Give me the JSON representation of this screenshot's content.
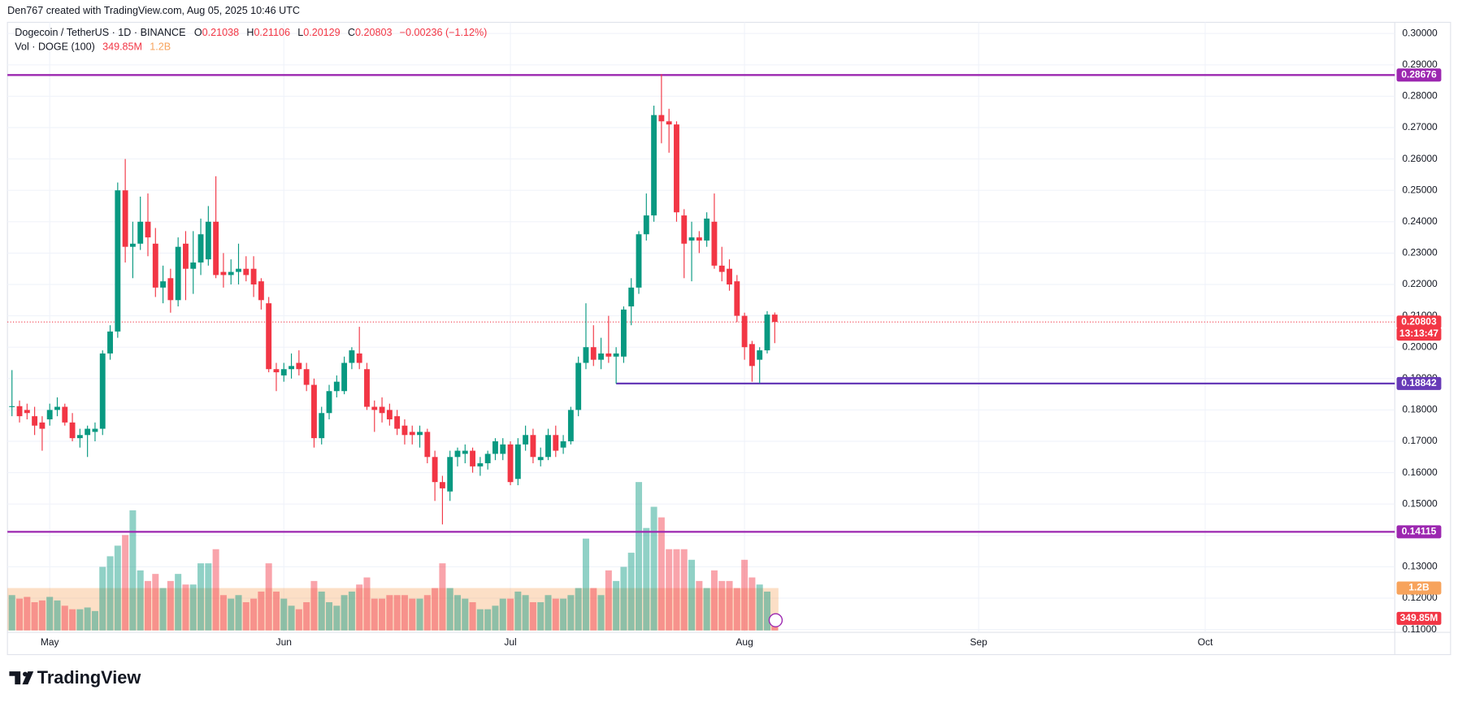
{
  "header": {
    "credit": "Den767 created with TradingView.com, Aug 05, 2025 10:46 UTC"
  },
  "chart_data": {
    "type": "candlestick",
    "symbol": "Dogecoin / TetherUS · 1D · BINANCE",
    "ohlc_labels": [
      "O",
      "H",
      "L",
      "C"
    ],
    "change": "−0.00236 (−1.12%)",
    "volume_title": "Vol · DOGE (100)",
    "volume_last": {
      "value": 349850000,
      "label": "349.85M"
    },
    "volume_ma": {
      "value": 1200000000,
      "label": "1.2B"
    },
    "countdown": "13:13:47",
    "up_color": "#089981",
    "down_color": "#f23645",
    "ma_color": "#f7a35c",
    "grid": true,
    "ylim": [
      0.11,
      0.3
    ],
    "yticks": [
      {
        "value": 0.3,
        "label": "0.30000"
      },
      {
        "value": 0.29,
        "label": "0.29000"
      },
      {
        "value": 0.28,
        "label": "0.28000"
      },
      {
        "value": 0.27,
        "label": "0.27000"
      },
      {
        "value": 0.26,
        "label": "0.26000"
      },
      {
        "value": 0.25,
        "label": "0.25000"
      },
      {
        "value": 0.24,
        "label": "0.24000"
      },
      {
        "value": 0.23,
        "label": "0.23000"
      },
      {
        "value": 0.22,
        "label": "0.22000"
      },
      {
        "value": 0.21,
        "label": "0.21000"
      },
      {
        "value": 0.2,
        "label": "0.20000"
      },
      {
        "value": 0.19,
        "label": "0.19000"
      },
      {
        "value": 0.18,
        "label": "0.18000"
      },
      {
        "value": 0.17,
        "label": "0.17000"
      },
      {
        "value": 0.16,
        "label": "0.16000"
      },
      {
        "value": 0.15,
        "label": "0.15000"
      },
      {
        "value": 0.14,
        "label": "0.14000"
      },
      {
        "value": 0.13,
        "label": "0.13000"
      },
      {
        "value": 0.12,
        "label": "0.12000"
      },
      {
        "value": 0.11,
        "label": "0.11000"
      }
    ],
    "xlim": [
      -0.6,
      183.1
    ],
    "xticks": [
      {
        "value": 5,
        "label": "May"
      },
      {
        "value": 36,
        "label": "Jun"
      },
      {
        "value": 66,
        "label": "Jul"
      },
      {
        "value": 97,
        "label": "Aug"
      },
      {
        "value": 128,
        "label": "Sep"
      },
      {
        "value": 158,
        "label": "Oct"
      }
    ],
    "levels": [
      {
        "value": 0.28676,
        "color": "#9c27b0"
      },
      {
        "value": 0.18842,
        "color": "#673ab7",
        "start": 80
      },
      {
        "value": 0.14115,
        "color": "#9c27b0"
      }
    ],
    "candles": [
      [
        0.181,
        0.1927,
        0.178,
        0.1812
      ],
      [
        0.1812,
        0.183,
        0.176,
        0.178
      ],
      [
        0.18,
        0.182,
        0.177,
        0.179
      ],
      [
        0.178,
        0.181,
        0.172,
        0.175
      ],
      [
        0.176,
        0.178,
        0.167,
        0.174
      ],
      [
        0.177,
        0.182,
        0.175,
        0.18
      ],
      [
        0.18,
        0.184,
        0.178,
        0.181
      ],
      [
        0.181,
        0.182,
        0.175,
        0.176
      ],
      [
        0.176,
        0.179,
        0.17,
        0.171
      ],
      [
        0.171,
        0.174,
        0.168,
        0.172
      ],
      [
        0.172,
        0.175,
        0.165,
        0.174
      ],
      [
        0.173,
        0.176,
        0.17,
        0.174
      ],
      [
        0.174,
        0.199,
        0.172,
        0.198
      ],
      [
        0.198,
        0.207,
        0.196,
        0.205
      ],
      [
        0.205,
        0.2525,
        0.203,
        0.25
      ],
      [
        0.25,
        0.26,
        0.227,
        0.232
      ],
      [
        0.232,
        0.24,
        0.222,
        0.233
      ],
      [
        0.233,
        0.248,
        0.231,
        0.24
      ],
      [
        0.24,
        0.249,
        0.229,
        0.235
      ],
      [
        0.233,
        0.238,
        0.216,
        0.219
      ],
      [
        0.219,
        0.226,
        0.214,
        0.221
      ],
      [
        0.222,
        0.225,
        0.211,
        0.215
      ],
      [
        0.215,
        0.235,
        0.213,
        0.232
      ],
      [
        0.233,
        0.237,
        0.215,
        0.225
      ],
      [
        0.225,
        0.237,
        0.217,
        0.227
      ],
      [
        0.227,
        0.241,
        0.223,
        0.236
      ],
      [
        0.228,
        0.245,
        0.226,
        0.24
      ],
      [
        0.24,
        0.2545,
        0.222,
        0.223
      ],
      [
        0.224,
        0.23,
        0.219,
        0.223
      ],
      [
        0.223,
        0.228,
        0.22,
        0.224
      ],
      [
        0.224,
        0.233,
        0.22,
        0.225
      ],
      [
        0.225,
        0.229,
        0.221,
        0.223
      ],
      [
        0.225,
        0.229,
        0.216,
        0.22
      ],
      [
        0.221,
        0.222,
        0.212,
        0.215
      ],
      [
        0.214,
        0.216,
        0.192,
        0.193
      ],
      [
        0.193,
        0.195,
        0.186,
        0.192
      ],
      [
        0.191,
        0.195,
        0.189,
        0.193
      ],
      [
        0.193,
        0.198,
        0.19,
        0.194
      ],
      [
        0.195,
        0.199,
        0.191,
        0.193
      ],
      [
        0.193,
        0.195,
        0.186,
        0.188
      ],
      [
        0.188,
        0.19,
        0.168,
        0.171
      ],
      [
        0.171,
        0.181,
        0.169,
        0.179
      ],
      [
        0.179,
        0.188,
        0.177,
        0.186
      ],
      [
        0.186,
        0.191,
        0.184,
        0.189
      ],
      [
        0.186,
        0.197,
        0.185,
        0.195
      ],
      [
        0.195,
        0.2,
        0.193,
        0.199
      ],
      [
        0.198,
        0.2065,
        0.193,
        0.195
      ],
      [
        0.193,
        0.195,
        0.18,
        0.181
      ],
      [
        0.181,
        0.183,
        0.173,
        0.18
      ],
      [
        0.181,
        0.184,
        0.176,
        0.179
      ],
      [
        0.18,
        0.182,
        0.175,
        0.177
      ],
      [
        0.178,
        0.18,
        0.172,
        0.174
      ],
      [
        0.175,
        0.177,
        0.169,
        0.172
      ],
      [
        0.173,
        0.175,
        0.169,
        0.172
      ],
      [
        0.172,
        0.175,
        0.168,
        0.173
      ],
      [
        0.173,
        0.174,
        0.163,
        0.165
      ],
      [
        0.165,
        0.167,
        0.151,
        0.157
      ],
      [
        0.157,
        0.159,
        0.1435,
        0.155
      ],
      [
        0.154,
        0.167,
        0.151,
        0.165
      ],
      [
        0.165,
        0.168,
        0.162,
        0.167
      ],
      [
        0.166,
        0.169,
        0.163,
        0.167
      ],
      [
        0.167,
        0.168,
        0.16,
        0.162
      ],
      [
        0.162,
        0.165,
        0.159,
        0.163
      ],
      [
        0.163,
        0.167,
        0.161,
        0.166
      ],
      [
        0.166,
        0.171,
        0.164,
        0.17
      ],
      [
        0.166,
        0.171,
        0.164,
        0.169
      ],
      [
        0.169,
        0.17,
        0.156,
        0.157
      ],
      [
        0.158,
        0.171,
        0.156,
        0.169
      ],
      [
        0.169,
        0.175,
        0.167,
        0.172
      ],
      [
        0.172,
        0.174,
        0.163,
        0.165
      ],
      [
        0.164,
        0.168,
        0.162,
        0.165
      ],
      [
        0.165,
        0.174,
        0.164,
        0.172
      ],
      [
        0.172,
        0.175,
        0.165,
        0.167
      ],
      [
        0.168,
        0.172,
        0.166,
        0.17
      ],
      [
        0.17,
        0.181,
        0.169,
        0.18
      ],
      [
        0.18,
        0.197,
        0.178,
        0.195
      ],
      [
        0.195,
        0.214,
        0.193,
        0.2
      ],
      [
        0.2,
        0.207,
        0.194,
        0.196
      ],
      [
        0.196,
        0.203,
        0.193,
        0.198
      ],
      [
        0.198,
        0.21,
        0.195,
        0.197
      ],
      [
        0.197,
        0.2,
        0.1884,
        0.198
      ],
      [
        0.197,
        0.213,
        0.195,
        0.212
      ],
      [
        0.213,
        0.222,
        0.207,
        0.219
      ],
      [
        0.219,
        0.237,
        0.217,
        0.236
      ],
      [
        0.236,
        0.249,
        0.234,
        0.242
      ],
      [
        0.242,
        0.277,
        0.24,
        0.274
      ],
      [
        0.274,
        0.287,
        0.265,
        0.272
      ],
      [
        0.272,
        0.276,
        0.262,
        0.271
      ],
      [
        0.271,
        0.272,
        0.24,
        0.243
      ],
      [
        0.242,
        0.244,
        0.222,
        0.233
      ],
      [
        0.234,
        0.24,
        0.221,
        0.235
      ],
      [
        0.235,
        0.237,
        0.23,
        0.234
      ],
      [
        0.234,
        0.243,
        0.232,
        0.241
      ],
      [
        0.24,
        0.249,
        0.225,
        0.226
      ],
      [
        0.226,
        0.232,
        0.221,
        0.224
      ],
      [
        0.225,
        0.228,
        0.218,
        0.22
      ],
      [
        0.221,
        0.223,
        0.208,
        0.21
      ],
      [
        0.21,
        0.211,
        0.196,
        0.2
      ],
      [
        0.201,
        0.202,
        0.189,
        0.194
      ],
      [
        0.196,
        0.2,
        0.1885,
        0.199
      ],
      [
        0.199,
        0.2115,
        0.198,
        0.2104
      ],
      [
        0.21038,
        0.21106,
        0.20129,
        0.20803
      ]
    ],
    "volumes": [
      1000000000.0,
      900000000.0,
      950000000.0,
      800000000.0,
      850000000.0,
      950000000.0,
      850000000.0,
      700000000.0,
      600000000.0,
      600000000.0,
      650000000.0,
      550000000.0,
      1800000000.0,
      2100000000.0,
      2400000000.0,
      2700000000.0,
      3400000000.0,
      1700000000.0,
      1400000000.0,
      1600000000.0,
      1200000000.0,
      1400000000.0,
      1600000000.0,
      1300000000.0,
      1300000000.0,
      1900000000.0,
      1900000000.0,
      2300000000.0,
      1000000000.0,
      900000000.0,
      1000000000.0,
      800000000.0,
      900000000.0,
      1100000000.0,
      1900000000.0,
      1100000000.0,
      900000000.0,
      700000000.0,
      600000000.0,
      800000000.0,
      1400000000.0,
      1100000000.0,
      800000000.0,
      700000000.0,
      1000000000.0,
      1100000000.0,
      1300000000.0,
      1500000000.0,
      900000000.0,
      900000000.0,
      1000000000.0,
      1000000000.0,
      1000000000.0,
      900000000.0,
      900000000.0,
      1000000000.0,
      1200000000.0,
      1900000000.0,
      1200000000.0,
      1000000000.0,
      900000000.0,
      800000000.0,
      600000000.0,
      600000000.0,
      700000000.0,
      900000000.0,
      900000000.0,
      1100000000.0,
      1000000000.0,
      800000000.0,
      800000000.0,
      1000000000.0,
      900000000.0,
      900000000.0,
      1000000000.0,
      1200000000.0,
      2600000000.0,
      1200000000.0,
      1000000000.0,
      1700000000.0,
      1400000000.0,
      1800000000.0,
      2200000000.0,
      4200000000.0,
      2900000000.0,
      3500000000.0,
      3200000000.0,
      2300000000.0,
      2300000000.0,
      2300000000.0,
      2000000000.0,
      1400000000.0,
      1200000000.0,
      1700000000.0,
      1400000000.0,
      1400000000.0,
      1200000000.0,
      2000000000.0,
      1500000000.0,
      1300000000.0,
      1100000000.0,
      349850000
    ]
  },
  "footer": {
    "brand": "TradingView"
  }
}
